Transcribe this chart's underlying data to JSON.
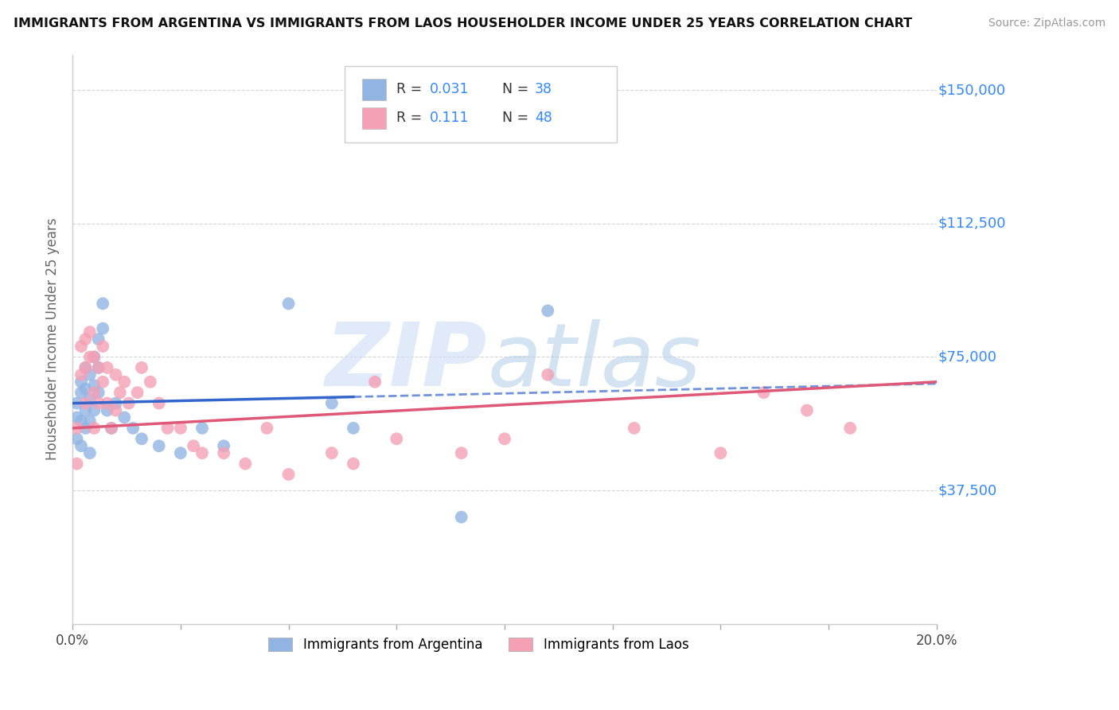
{
  "title": "IMMIGRANTS FROM ARGENTINA VS IMMIGRANTS FROM LAOS HOUSEHOLDER INCOME UNDER 25 YEARS CORRELATION CHART",
  "source": "Source: ZipAtlas.com",
  "ylabel": "Householder Income Under 25 years",
  "xlim": [
    0.0,
    0.2
  ],
  "ylim": [
    0,
    160000
  ],
  "yticks": [
    37500,
    75000,
    112500,
    150000
  ],
  "ytick_labels": [
    "$37,500",
    "$75,000",
    "$112,500",
    "$150,000"
  ],
  "argentina_R": 0.031,
  "argentina_N": 38,
  "laos_R": 0.111,
  "laos_N": 48,
  "argentina_color": "#92b4e3",
  "laos_color": "#f4a0b5",
  "argentina_line_color": "#3366cc",
  "laos_line_color": "#e05878",
  "background_color": "#ffffff",
  "grid_color": "#cccccc",
  "legend_label_argentina": "Immigrants from Argentina",
  "legend_label_laos": "Immigrants from Laos",
  "argentina_x": [
    0.001,
    0.001,
    0.001,
    0.002,
    0.002,
    0.002,
    0.002,
    0.003,
    0.003,
    0.003,
    0.003,
    0.004,
    0.004,
    0.004,
    0.004,
    0.005,
    0.005,
    0.005,
    0.006,
    0.006,
    0.006,
    0.007,
    0.007,
    0.008,
    0.009,
    0.01,
    0.012,
    0.014,
    0.016,
    0.02,
    0.025,
    0.03,
    0.035,
    0.05,
    0.06,
    0.065,
    0.09,
    0.11
  ],
  "argentina_y": [
    62000,
    58000,
    52000,
    68000,
    65000,
    57000,
    50000,
    72000,
    66000,
    60000,
    55000,
    70000,
    63000,
    57000,
    48000,
    75000,
    67000,
    60000,
    80000,
    72000,
    65000,
    90000,
    83000,
    60000,
    55000,
    62000,
    58000,
    55000,
    52000,
    50000,
    48000,
    55000,
    50000,
    90000,
    62000,
    55000,
    30000,
    88000
  ],
  "laos_x": [
    0.001,
    0.001,
    0.002,
    0.002,
    0.003,
    0.003,
    0.003,
    0.004,
    0.004,
    0.005,
    0.005,
    0.005,
    0.006,
    0.006,
    0.007,
    0.007,
    0.008,
    0.008,
    0.009,
    0.01,
    0.01,
    0.011,
    0.012,
    0.013,
    0.015,
    0.016,
    0.018,
    0.02,
    0.022,
    0.025,
    0.028,
    0.03,
    0.035,
    0.04,
    0.045,
    0.05,
    0.06,
    0.065,
    0.07,
    0.075,
    0.09,
    0.1,
    0.11,
    0.13,
    0.15,
    0.16,
    0.17,
    0.18
  ],
  "laos_y": [
    55000,
    45000,
    78000,
    70000,
    80000,
    72000,
    62000,
    82000,
    75000,
    75000,
    65000,
    55000,
    72000,
    62000,
    78000,
    68000,
    72000,
    62000,
    55000,
    70000,
    60000,
    65000,
    68000,
    62000,
    65000,
    72000,
    68000,
    62000,
    55000,
    55000,
    50000,
    48000,
    48000,
    45000,
    55000,
    42000,
    48000,
    45000,
    68000,
    52000,
    48000,
    52000,
    70000,
    55000,
    48000,
    65000,
    60000,
    55000
  ]
}
